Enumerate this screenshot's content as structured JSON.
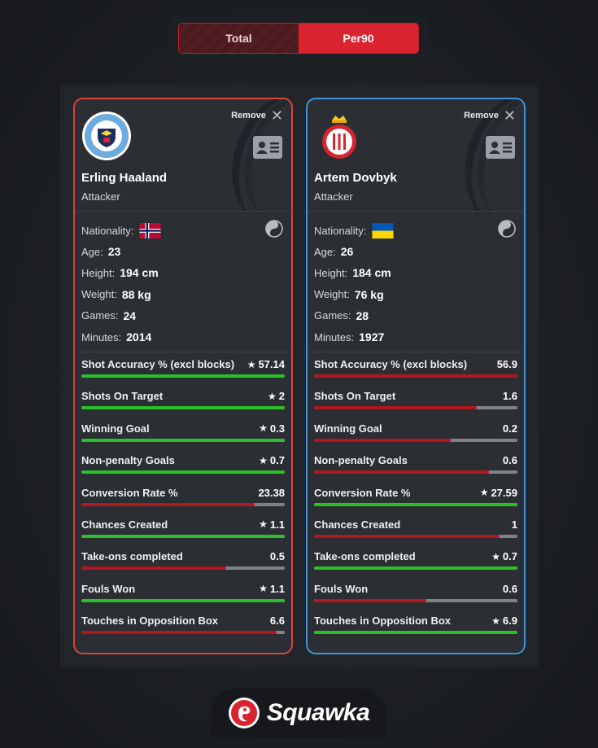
{
  "toggle": {
    "total_label": "Total",
    "per90_label": "Per90",
    "active": "Per90"
  },
  "colors": {
    "accent_red": "#d9232f",
    "bar_green": "#2bc02b",
    "bar_red": "#b3161f",
    "bar_track": "#7f8388",
    "left_border": "#d9443c",
    "right_border": "#3d93d6"
  },
  "players": [
    {
      "remove_label": "Remove",
      "name": "Erling Haaland",
      "position": "Attacker",
      "club_crest": "manchester-city-crest",
      "nationality_flag": "norway-flag",
      "labels": {
        "nationality": "Nationality:",
        "age": "Age:",
        "height": "Height:",
        "weight": "Weight:",
        "games": "Games:",
        "minutes": "Minutes:"
      },
      "age": "23",
      "height": "194 cm",
      "weight": "88 kg",
      "games": "24",
      "minutes": "2014",
      "stats": [
        {
          "label": "Shot Accuracy % (excl blocks)",
          "value": "57.14",
          "star": "★",
          "fill": 1.0,
          "color": "green"
        },
        {
          "label": "Shots On Target",
          "value": "2",
          "star": "★",
          "fill": 1.0,
          "color": "green"
        },
        {
          "label": "Winning Goal",
          "value": "0.3",
          "star": "★",
          "fill": 1.0,
          "color": "green"
        },
        {
          "label": "Non-penalty Goals",
          "value": "0.7",
          "star": "★",
          "fill": 1.0,
          "color": "green"
        },
        {
          "label": "Conversion Rate %",
          "value": "23.38",
          "star": "",
          "fill": 0.85,
          "color": "red"
        },
        {
          "label": "Chances Created",
          "value": "1.1",
          "star": "★",
          "fill": 1.0,
          "color": "green"
        },
        {
          "label": "Take-ons completed",
          "value": "0.5",
          "star": "",
          "fill": 0.71,
          "color": "red"
        },
        {
          "label": "Fouls Won",
          "value": "1.1",
          "star": "★",
          "fill": 1.0,
          "color": "green"
        },
        {
          "label": "Touches in Opposition Box",
          "value": "6.6",
          "star": "",
          "fill": 0.96,
          "color": "red"
        }
      ]
    },
    {
      "remove_label": "Remove",
      "name": "Artem Dovbyk",
      "position": "Attacker",
      "club_crest": "girona-crest",
      "nationality_flag": "ukraine-flag",
      "labels": {
        "nationality": "Nationality:",
        "age": "Age:",
        "height": "Height:",
        "weight": "Weight:",
        "games": "Games:",
        "minutes": "Minutes:"
      },
      "age": "26",
      "height": "184 cm",
      "weight": "76 kg",
      "games": "28",
      "minutes": "1927",
      "stats": [
        {
          "label": "Shot Accuracy % (excl blocks)",
          "value": "56.9",
          "star": "",
          "fill": 1.0,
          "color": "red"
        },
        {
          "label": "Shots On Target",
          "value": "1.6",
          "star": "",
          "fill": 0.8,
          "color": "red"
        },
        {
          "label": "Winning Goal",
          "value": "0.2",
          "star": "",
          "fill": 0.67,
          "color": "red"
        },
        {
          "label": "Non-penalty Goals",
          "value": "0.6",
          "star": "",
          "fill": 0.86,
          "color": "red"
        },
        {
          "label": "Conversion Rate %",
          "value": "27.59",
          "star": "★",
          "fill": 1.0,
          "color": "green"
        },
        {
          "label": "Chances Created",
          "value": "1",
          "star": "",
          "fill": 0.91,
          "color": "red"
        },
        {
          "label": "Take-ons completed",
          "value": "0.7",
          "star": "★",
          "fill": 1.0,
          "color": "green"
        },
        {
          "label": "Fouls Won",
          "value": "0.6",
          "star": "",
          "fill": 0.55,
          "color": "red"
        },
        {
          "label": "Touches in Opposition Box",
          "value": "6.9",
          "star": "★",
          "fill": 1.0,
          "color": "green"
        }
      ]
    }
  ],
  "brand": {
    "name": "Squawka",
    "logo_icon": "squawka-logo-icon"
  }
}
